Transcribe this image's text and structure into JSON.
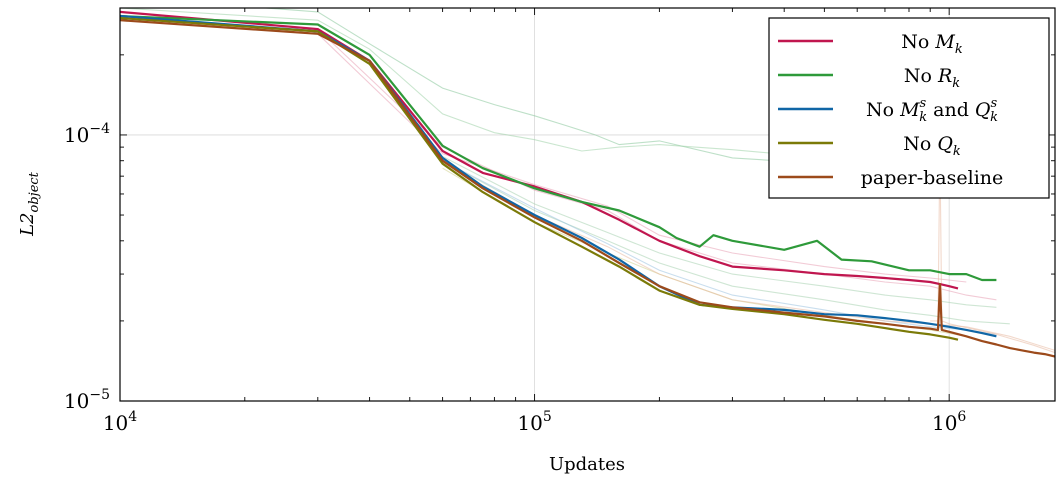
{
  "chart_data": {
    "type": "line",
    "xscale": "log",
    "yscale": "log",
    "xlim": [
      10000,
      1800000
    ],
    "ylim": [
      1e-05,
      0.0003
    ],
    "xlabel": "Updates",
    "ylabel": "L2_object",
    "ylabel_main": "L2",
    "ylabel_sub": "object",
    "grid": true,
    "legend_position": "top-right",
    "x_ticks": [
      {
        "value": 10000,
        "base": "10",
        "exp": "4"
      },
      {
        "value": 100000,
        "base": "10",
        "exp": "5"
      },
      {
        "value": 1000000,
        "base": "10",
        "exp": "6"
      }
    ],
    "y_ticks": [
      {
        "value": 1e-05,
        "base": "10",
        "exp": "−5"
      },
      {
        "value": 0.0001,
        "base": "10",
        "exp": "−4"
      }
    ],
    "legend": [
      {
        "parts": [
          {
            "t": "No "
          },
          {
            "t": "M",
            "i": true
          },
          {
            "t": "k",
            "i": true,
            "sub": true
          }
        ]
      },
      {
        "parts": [
          {
            "t": "No "
          },
          {
            "t": "R",
            "i": true
          },
          {
            "t": "k",
            "i": true,
            "sub": true
          }
        ]
      },
      {
        "parts": [
          {
            "t": "No "
          },
          {
            "t": "M",
            "i": true
          },
          {
            "t": "s",
            "i": true,
            "sup": true
          },
          {
            "t": "k",
            "i": true,
            "sub": true
          },
          {
            "t": " and "
          },
          {
            "t": "Q",
            "i": true
          },
          {
            "t": "s",
            "i": true,
            "sup": true
          },
          {
            "t": "k",
            "i": true,
            "sub": true
          }
        ]
      },
      {
        "parts": [
          {
            "t": "No "
          },
          {
            "t": "Q",
            "i": true
          },
          {
            "t": "k",
            "i": true,
            "sub": true
          }
        ]
      },
      {
        "parts": [
          {
            "t": "paper-baseline"
          }
        ]
      }
    ],
    "series": [
      {
        "name": "No M_k",
        "color": "#c0164f",
        "x": [
          10000,
          30000,
          40000,
          60000,
          75000,
          100000,
          130000,
          160000,
          200000,
          250000,
          300000,
          400000,
          500000,
          600000,
          700000,
          800000,
          900000,
          950000,
          1000000,
          1050000
        ],
        "y": [
          0.00029,
          0.00025,
          0.00019,
          8.7e-05,
          7.2e-05,
          6.4e-05,
          5.6e-05,
          4.8e-05,
          4e-05,
          3.5e-05,
          3.2e-05,
          3.1e-05,
          3e-05,
          2.95e-05,
          2.9e-05,
          2.85e-05,
          2.8e-05,
          2.75e-05,
          2.7e-05,
          2.65e-05
        ]
      },
      {
        "name": "No R_k",
        "color": "#2e9a3a",
        "x": [
          10000,
          30000,
          40000,
          60000,
          75000,
          100000,
          130000,
          160000,
          200000,
          220000,
          250000,
          270000,
          300000,
          400000,
          480000,
          550000,
          650000,
          800000,
          900000,
          1000000,
          1100000,
          1200000,
          1300000
        ],
        "y": [
          0.00028,
          0.00026,
          0.0002,
          9.1e-05,
          7.5e-05,
          6.3e-05,
          5.6e-05,
          5.2e-05,
          4.5e-05,
          4.1e-05,
          3.8e-05,
          4.2e-05,
          4e-05,
          3.7e-05,
          4e-05,
          3.4e-05,
          3.35e-05,
          3.1e-05,
          3.1e-05,
          3e-05,
          3e-05,
          2.85e-05,
          2.85e-05
        ]
      },
      {
        "name": "No M_k^s and Q_k^s",
        "color": "#1066a6",
        "x": [
          10000,
          30000,
          40000,
          60000,
          75000,
          100000,
          130000,
          160000,
          200000,
          250000,
          300000,
          400000,
          500000,
          600000,
          700000,
          800000,
          900000,
          1000000,
          1100000,
          1200000,
          1300000
        ],
        "y": [
          0.00028,
          0.000245,
          0.00019,
          8.2e-05,
          6.4e-05,
          5e-05,
          4.1e-05,
          3.4e-05,
          2.7e-05,
          2.3e-05,
          2.25e-05,
          2.2e-05,
          2.12e-05,
          2.1e-05,
          2.05e-05,
          2e-05,
          1.95e-05,
          1.9e-05,
          1.85e-05,
          1.8e-05,
          1.75e-05
        ]
      },
      {
        "name": "No Q_k",
        "color": "#7b7a08",
        "x": [
          10000,
          30000,
          40000,
          60000,
          75000,
          100000,
          130000,
          160000,
          200000,
          250000,
          300000,
          400000,
          500000,
          600000,
          700000,
          800000,
          900000,
          1000000,
          1050000
        ],
        "y": [
          0.000275,
          0.000245,
          0.000185,
          7.8e-05,
          6.1e-05,
          4.7e-05,
          3.8e-05,
          3.2e-05,
          2.6e-05,
          2.3e-05,
          2.22e-05,
          2.12e-05,
          2.02e-05,
          1.95e-05,
          1.88e-05,
          1.82e-05,
          1.78e-05,
          1.73e-05,
          1.7e-05
        ]
      },
      {
        "name": "paper-baseline",
        "color": "#9c4a1b",
        "x": [
          10000,
          30000,
          40000,
          60000,
          75000,
          100000,
          130000,
          160000,
          200000,
          250000,
          300000,
          400000,
          500000,
          600000,
          700000,
          800000,
          900000,
          940000,
          950000,
          960000,
          1000000,
          1100000,
          1200000,
          1300000,
          1400000,
          1500000,
          1600000,
          1700000,
          1800000
        ],
        "y": [
          0.00027,
          0.00024,
          0.00019,
          8e-05,
          6.3e-05,
          4.9e-05,
          4e-05,
          3.3e-05,
          2.7e-05,
          2.35e-05,
          2.25e-05,
          2.15e-05,
          2.08e-05,
          2e-05,
          1.95e-05,
          1.9e-05,
          1.87e-05,
          1.85e-05,
          2.75e-05,
          1.85e-05,
          1.82e-05,
          1.75e-05,
          1.68e-05,
          1.63e-05,
          1.58e-05,
          1.55e-05,
          1.52e-05,
          1.5e-05,
          1.47e-05
        ]
      }
    ],
    "faint_series": [
      {
        "color": "#88c69a",
        "x": [
          10000,
          30000,
          40000,
          60000,
          80000,
          100000,
          120000,
          140000,
          160000,
          200000,
          300000,
          500000,
          700000,
          900000,
          1000000,
          1100000,
          1200000
        ],
        "y": [
          0.00033,
          0.00029,
          0.00022,
          0.00015,
          0.00013,
          0.000118,
          0.000108,
          0.0001,
          9.2e-05,
          9.5e-05,
          8.2e-05,
          7.8e-05,
          7.2e-05,
          7e-05,
          7.1e-05,
          6.4e-05,
          6.6e-05
        ]
      },
      {
        "color": "#9fd1a8",
        "x": [
          10000,
          30000,
          40000,
          60000,
          80000,
          100000,
          130000,
          160000,
          200000,
          300000,
          500000,
          700000,
          900000,
          1000000,
          1100000,
          1200000
        ],
        "y": [
          0.0003,
          0.00027,
          0.00021,
          0.00012,
          0.000102,
          9.6e-05,
          8.7e-05,
          9e-05,
          9.2e-05,
          8.8e-05,
          8.2e-05,
          7.5e-05,
          6.7e-05,
          6.4e-05,
          6.2e-05,
          6e-05
        ]
      },
      {
        "color": "#e7a0b5",
        "x": [
          30000,
          60000,
          100000,
          150000,
          200000,
          300000,
          500000,
          700000,
          900000,
          1100000
        ],
        "y": [
          0.00024,
          8.5e-05,
          6.5e-05,
          5.4e-05,
          4.2e-05,
          3.6e-05,
          3.2e-05,
          3e-05,
          2.9e-05,
          2.8e-05
        ]
      },
      {
        "color": "#e7a0b5",
        "x": [
          30000,
          60000,
          100000,
          150000,
          200000,
          300000,
          500000,
          700000,
          900000,
          1100000,
          1300000
        ],
        "y": [
          0.00025,
          9e-05,
          6.2e-05,
          5.2e-05,
          4e-05,
          3.3e-05,
          3e-05,
          2.8e-05,
          2.7e-05,
          2.5e-05,
          2.4e-05
        ]
      },
      {
        "color": "#a8d2b0",
        "x": [
          60000,
          100000,
          150000,
          200000,
          300000,
          500000,
          700000,
          900000,
          1100000,
          1300000
        ],
        "y": [
          8.3e-05,
          5.5e-05,
          4.3e-05,
          3.6e-05,
          3e-05,
          2.7e-05,
          2.5e-05,
          2.4e-05,
          2.3e-05,
          2.25e-05
        ]
      },
      {
        "color": "#a8d2b0",
        "x": [
          60000,
          100000,
          150000,
          200000,
          300000,
          500000,
          700000,
          900000,
          1100000,
          1400000
        ],
        "y": [
          8e-05,
          5.2e-05,
          4e-05,
          3.3e-05,
          2.7e-05,
          2.4e-05,
          2.2e-05,
          2.1e-05,
          2e-05,
          1.95e-05
        ]
      },
      {
        "color": "#9dc3e0",
        "x": [
          60000,
          100000,
          150000,
          200000,
          300000,
          500000,
          700000,
          900000,
          1100000,
          1300000
        ],
        "y": [
          8e-05,
          5.3e-05,
          3.9e-05,
          3.1e-05,
          2.5e-05,
          2.2e-05,
          2e-05,
          1.9e-05,
          1.85e-05,
          1.78e-05
        ]
      },
      {
        "color": "#cfcf8a",
        "x": [
          60000,
          100000,
          150000,
          200000,
          300000,
          500000,
          700000,
          900000,
          1100000
        ],
        "y": [
          7.5e-05,
          4.7e-05,
          3.6e-05,
          3e-05,
          2.4e-05,
          2.1e-05,
          1.95e-05,
          1.85e-05,
          1.75e-05
        ]
      },
      {
        "color": "#e8b9a3",
        "x": [
          60000,
          100000,
          150000,
          200000,
          300000,
          500000,
          700000,
          900000,
          1100000,
          1400000,
          1800000
        ],
        "y": [
          7.9e-05,
          5e-05,
          3.8e-05,
          3e-05,
          2.4e-05,
          2.15e-05,
          2e-05,
          1.95e-05,
          1.9e-05,
          1.75e-05,
          1.55e-05
        ]
      },
      {
        "color": "#e8b9a3",
        "x": [
          900000,
          940000,
          950000,
          960000,
          1000000,
          1300000,
          1600000,
          1800000
        ],
        "y": [
          2e-05,
          2e-05,
          9e-05,
          2e-05,
          1.95e-05,
          1.78e-05,
          1.62e-05,
          1.52e-05
        ]
      }
    ]
  }
}
